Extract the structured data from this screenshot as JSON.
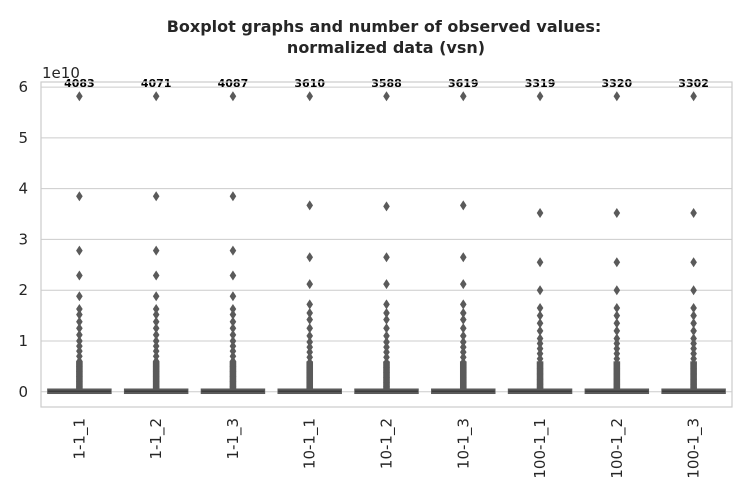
{
  "chart_data": {
    "type": "boxplot",
    "title_lines": [
      "Boxplot graphs and number of observed values:",
      "normalized data (vsn)"
    ],
    "xlabel": "",
    "ylabel": "",
    "y_scale_label": "1e10",
    "ylim": [
      -0.3,
      6.1
    ],
    "y_ticks": [
      0,
      1,
      2,
      3,
      4,
      5,
      6
    ],
    "y_tick_labels": [
      "0",
      "1",
      "2",
      "3",
      "4",
      "5",
      "6"
    ],
    "grid": true,
    "categories": [
      "1-1_1",
      "1-1_2",
      "1-1_3",
      "10-1_1",
      "10-1_2",
      "10-1_3",
      "100-1_1",
      "100-1_2",
      "100-1_3"
    ],
    "counts": [
      "4083",
      "4071",
      "4087",
      "3610",
      "3588",
      "3619",
      "3319",
      "3320",
      "3302"
    ],
    "box_color": "#5a5a5a",
    "grid_color": "#cccccc",
    "boxes": [
      {
        "min": 0.0,
        "q1": 0.0,
        "median": 0.01,
        "q3": 0.03,
        "max": 0.06,
        "outliers": [
          5.82,
          3.85,
          2.78,
          2.29,
          1.88,
          1.63,
          1.52,
          1.38,
          1.25,
          1.12,
          1.0,
          0.9,
          0.8,
          0.7,
          0.6,
          0.5,
          0.4,
          0.3,
          0.2,
          0.1
        ]
      },
      {
        "min": 0.0,
        "q1": 0.0,
        "median": 0.01,
        "q3": 0.03,
        "max": 0.06,
        "outliers": [
          5.82,
          3.85,
          2.78,
          2.29,
          1.88,
          1.63,
          1.52,
          1.38,
          1.25,
          1.12,
          1.0,
          0.9,
          0.8,
          0.7,
          0.6,
          0.5,
          0.4,
          0.3,
          0.2,
          0.1
        ]
      },
      {
        "min": 0.0,
        "q1": 0.0,
        "median": 0.01,
        "q3": 0.03,
        "max": 0.06,
        "outliers": [
          5.82,
          3.85,
          2.78,
          2.29,
          1.88,
          1.63,
          1.52,
          1.38,
          1.25,
          1.12,
          1.0,
          0.9,
          0.8,
          0.7,
          0.6,
          0.5,
          0.4,
          0.3,
          0.2,
          0.1
        ]
      },
      {
        "min": 0.0,
        "q1": 0.0,
        "median": 0.01,
        "q3": 0.03,
        "max": 0.06,
        "outliers": [
          5.82,
          3.67,
          2.65,
          2.12,
          1.72,
          1.55,
          1.42,
          1.25,
          1.1,
          0.98,
          0.88,
          0.78,
          0.68,
          0.58,
          0.48,
          0.38,
          0.28,
          0.18,
          0.1
        ]
      },
      {
        "min": 0.0,
        "q1": 0.0,
        "median": 0.01,
        "q3": 0.03,
        "max": 0.06,
        "outliers": [
          5.82,
          3.65,
          2.65,
          2.12,
          1.72,
          1.55,
          1.42,
          1.25,
          1.1,
          0.98,
          0.88,
          0.78,
          0.68,
          0.58,
          0.48,
          0.38,
          0.28,
          0.18,
          0.1
        ]
      },
      {
        "min": 0.0,
        "q1": 0.0,
        "median": 0.01,
        "q3": 0.03,
        "max": 0.06,
        "outliers": [
          5.82,
          3.67,
          2.65,
          2.12,
          1.72,
          1.55,
          1.42,
          1.25,
          1.1,
          0.98,
          0.88,
          0.78,
          0.68,
          0.58,
          0.48,
          0.38,
          0.28,
          0.18,
          0.1
        ]
      },
      {
        "min": 0.0,
        "q1": 0.0,
        "median": 0.01,
        "q3": 0.03,
        "max": 0.06,
        "outliers": [
          5.82,
          3.52,
          2.55,
          2.0,
          1.65,
          1.5,
          1.35,
          1.2,
          1.05,
          0.95,
          0.85,
          0.75,
          0.65,
          0.55,
          0.45,
          0.35,
          0.25,
          0.15,
          0.08
        ]
      },
      {
        "min": 0.0,
        "q1": 0.0,
        "median": 0.01,
        "q3": 0.03,
        "max": 0.06,
        "outliers": [
          5.82,
          3.52,
          2.55,
          2.0,
          1.65,
          1.5,
          1.35,
          1.2,
          1.05,
          0.95,
          0.85,
          0.75,
          0.65,
          0.55,
          0.45,
          0.35,
          0.25,
          0.15,
          0.08
        ]
      },
      {
        "min": 0.0,
        "q1": 0.0,
        "median": 0.01,
        "q3": 0.03,
        "max": 0.06,
        "outliers": [
          5.82,
          3.52,
          2.55,
          2.0,
          1.65,
          1.5,
          1.35,
          1.2,
          1.05,
          0.95,
          0.85,
          0.75,
          0.65,
          0.55,
          0.45,
          0.35,
          0.25,
          0.15,
          0.08
        ]
      }
    ]
  }
}
